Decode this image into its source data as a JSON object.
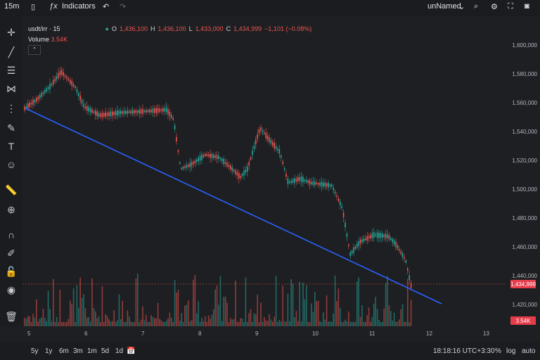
{
  "topbar": {
    "interval": "15m",
    "indicators": "Indicators",
    "layout": "unNamed"
  },
  "legend": {
    "symbol": "usdt/irr · 15",
    "o": "O",
    "o_val": "1,436,100",
    "h": "H",
    "h_val": "1,436,100",
    "l": "L",
    "l_val": "1,433,000",
    "c": "C",
    "c_val": "1,434,999",
    "chg": "−1,101 (−0.08%)",
    "volume_label": "Volume",
    "volume_val": "3.54K"
  },
  "price_tag": "1,434,999",
  "vol_tag": "3.54K",
  "y_labels": [
    "1,600,000",
    "1,580,000",
    "1,560,000",
    "1,540,000",
    "1,520,000",
    "1,500,000",
    "1,480,000",
    "1,460,000",
    "1,440,000",
    "1,420,000"
  ],
  "x_labels": [
    "5",
    "6",
    "7",
    "8",
    "9",
    "10",
    "11",
    "12",
    "13"
  ],
  "bottom": {
    "ranges": [
      "5y",
      "1y",
      "6m",
      "3m",
      "1m",
      "5d",
      "1d"
    ],
    "time": "18:18:16 UTC+3:30",
    "pct": "%",
    "log": "log",
    "auto": "auto"
  },
  "colors": {
    "up": "#26a69a",
    "down": "#ef5350",
    "trend": "#2962ff"
  }
}
